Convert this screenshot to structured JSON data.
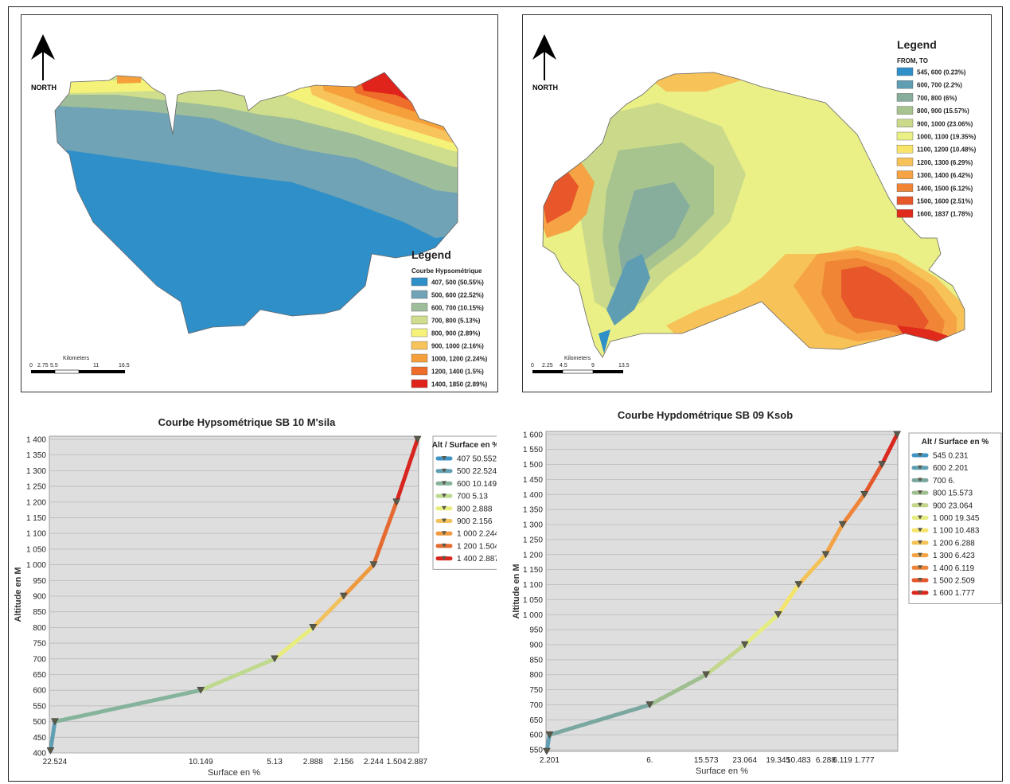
{
  "map_left": {
    "north_label": "NORTH",
    "legend_title": "Legend",
    "legend_subtitle": "Courbe Hypsométrique",
    "legend_items": [
      {
        "label": "407, 500 (50.55%)",
        "color": "#2f8fc9"
      },
      {
        "label": "500, 600 (22.52%)",
        "color": "#6fa3b5"
      },
      {
        "label": "600, 700 (10.15%)",
        "color": "#9ebd9a"
      },
      {
        "label": "700, 800 (5.13%)",
        "color": "#cfde8c"
      },
      {
        "label": "800, 900 (2.89%)",
        "color": "#f5f27a"
      },
      {
        "label": "900, 1000 (2.16%)",
        "color": "#f7c35a"
      },
      {
        "label": "1000, 1200 (2.24%)",
        "color": "#f5a03a"
      },
      {
        "label": "1200, 1400 (1.5%)",
        "color": "#ee6d2a"
      },
      {
        "label": "1400, 1850 (2.89%)",
        "color": "#e0231b"
      }
    ],
    "scale_title": "Kilometers",
    "scale_ticks": [
      "0",
      "2.75",
      "5.5",
      "11",
      "16.5"
    ]
  },
  "map_right": {
    "north_label": "NORTH",
    "legend_title": "Legend",
    "legend_subtitle": "FROM, TO",
    "legend_items": [
      {
        "label": "545, 600 (0.23%)",
        "color": "#2f8fc9"
      },
      {
        "label": "600, 700 (2.2%)",
        "color": "#5f9db3"
      },
      {
        "label": "700, 800 (6%)",
        "color": "#87ad9d"
      },
      {
        "label": "800, 900 (15.57%)",
        "color": "#a8c48e"
      },
      {
        "label": "900, 1000 (23.06%)",
        "color": "#cad98a"
      },
      {
        "label": "1000, 1100 (19.35%)",
        "color": "#eaef86"
      },
      {
        "label": "1100, 1200 (10.48%)",
        "color": "#f8e46a"
      },
      {
        "label": "1200, 1300 (6.29%)",
        "color": "#f7c257"
      },
      {
        "label": "1300, 1400 (6.42%)",
        "color": "#f5a344"
      },
      {
        "label": "1400, 1500 (6.12%)",
        "color": "#f08536"
      },
      {
        "label": "1500, 1600 (2.51%)",
        "color": "#e8572a"
      },
      {
        "label": "1600, 1837 (1.78%)",
        "color": "#df2a1c"
      }
    ],
    "scale_title": "Kilometers",
    "scale_ticks": [
      "0",
      "2.25",
      "4.5",
      "9",
      "13.5"
    ]
  },
  "chart_data": [
    {
      "type": "line",
      "title": "Courbe Hypsométrique SB 10 M'sila",
      "xlabel": "Surface en %",
      "ylabel": "Altitude en M",
      "ylim": [
        400,
        1410
      ],
      "y_ticks": [
        "400",
        "450",
        "500",
        "550",
        "600",
        "650",
        "700",
        "750",
        "800",
        "850",
        "900",
        "950",
        "1 000",
        "1 050",
        "1 100",
        "1 150",
        "1 200",
        "1 250",
        "1 300",
        "1 350",
        "1 400"
      ],
      "x_tick_labels": [
        "22.524",
        "10.149",
        "5.13",
        "2.888",
        "2.156",
        "2.244",
        "1.504",
        "2.887"
      ],
      "legend_title": "Alt / Surface en %",
      "grid": true,
      "points": [
        {
          "x": 0.3,
          "y": 407,
          "color": "#3f93c4"
        },
        {
          "x": 1.5,
          "y": 500,
          "color": "#5f9fb4"
        },
        {
          "x": 41.0,
          "y": 600,
          "color": "#86b39b"
        },
        {
          "x": 61.0,
          "y": 700,
          "color": "#bfd98f"
        },
        {
          "x": 71.4,
          "y": 800,
          "color": "#e8ed7c"
        },
        {
          "x": 79.7,
          "y": 900,
          "color": "#f2c05c"
        },
        {
          "x": 87.8,
          "y": 1000,
          "color": "#ef9a3f"
        },
        {
          "x": 94.0,
          "y": 1200,
          "color": "#e56a30"
        },
        {
          "x": 99.7,
          "y": 1400,
          "color": "#d7261f"
        }
      ],
      "legend_entries": [
        "407 50.552",
        "500 22.524",
        "600 10.149",
        "700 5.13",
        "800 2.888",
        "900 2.156",
        "1 000 2.244",
        "1 200 1.504",
        "1 400 2.887"
      ]
    },
    {
      "type": "line",
      "title": "Courbe Hypdométrique SB 09 Ksob",
      "xlabel": "Surface en %",
      "ylabel": "Altitude en M",
      "ylim": [
        545,
        1610
      ],
      "y_ticks": [
        "550",
        "600",
        "650",
        "700",
        "750",
        "800",
        "850",
        "900",
        "950",
        "1 000",
        "1 050",
        "1 100",
        "1 150",
        "1 200",
        "1 250",
        "1 300",
        "1 350",
        "1 400",
        "1 450",
        "1 500",
        "1 550",
        "1 600"
      ],
      "x_tick_labels": [
        "2.201",
        "6.",
        "15.573",
        "23.064",
        "19.345",
        "10.483",
        "6.288",
        "6.119",
        "1.777"
      ],
      "legend_title": "Alt / Surface en %",
      "grid": true,
      "points": [
        {
          "x": 0.2,
          "y": 545,
          "color": "#3f93c4"
        },
        {
          "x": 1.0,
          "y": 600,
          "color": "#5f9fb4"
        },
        {
          "x": 29.5,
          "y": 700,
          "color": "#7aa7a0"
        },
        {
          "x": 45.5,
          "y": 800,
          "color": "#9fbf90"
        },
        {
          "x": 56.5,
          "y": 900,
          "color": "#c3d68a"
        },
        {
          "x": 66.0,
          "y": 1000,
          "color": "#e5ed80"
        },
        {
          "x": 71.8,
          "y": 1100,
          "color": "#f5e46b"
        },
        {
          "x": 79.5,
          "y": 1200,
          "color": "#f5c257"
        },
        {
          "x": 84.3,
          "y": 1300,
          "color": "#f3a246"
        },
        {
          "x": 90.5,
          "y": 1400,
          "color": "#ee8438"
        },
        {
          "x": 95.5,
          "y": 1500,
          "color": "#e4572c"
        },
        {
          "x": 99.8,
          "y": 1600,
          "color": "#d9281f"
        }
      ],
      "legend_entries": [
        "545 0.231",
        "600 2.201",
        "700 6.",
        "800 15.573",
        "900 23.064",
        "1 000 19.345",
        "1 100 10.483",
        "1 200 6.288",
        "1 300 6.423",
        "1 400 6.119",
        "1 500 2.509",
        "1 600 1.777"
      ]
    }
  ]
}
